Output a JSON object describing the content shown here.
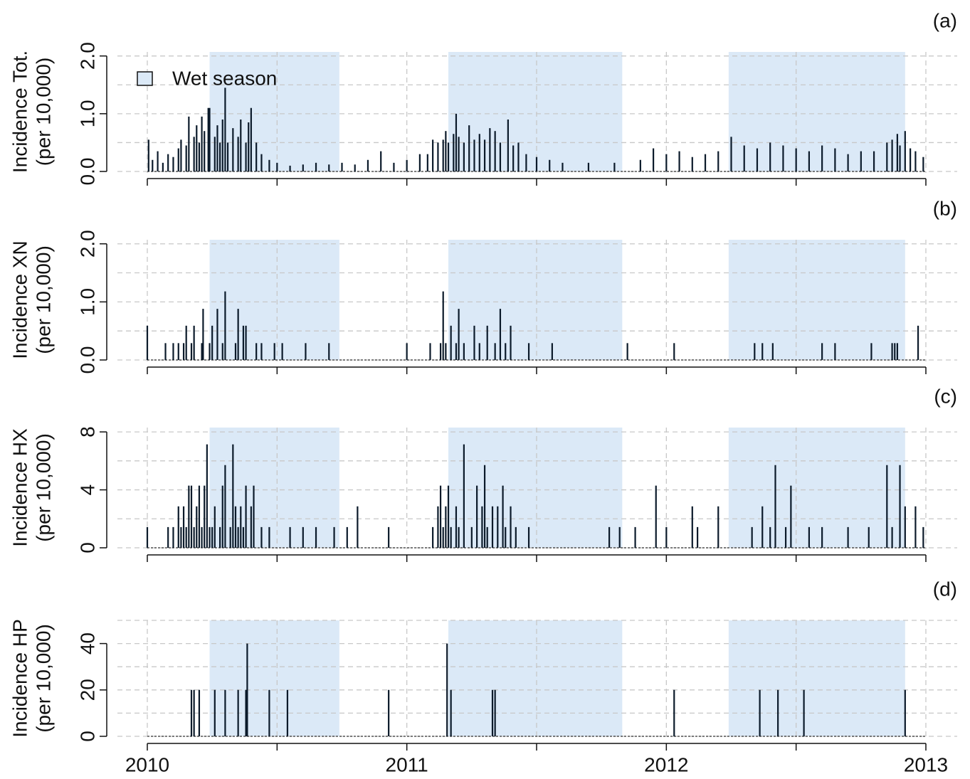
{
  "x_axis": {
    "xlim": [
      2010,
      2013
    ],
    "xticks": [
      2010,
      2011,
      2012,
      2013
    ],
    "minor_xticks": [
      2010.5,
      2011.5,
      2012.5
    ]
  },
  "wet_season": {
    "label": "Wet season",
    "color": "#dbe9f7",
    "periods": [
      [
        2010.24,
        2010.74
      ],
      [
        2011.16,
        2011.83
      ],
      [
        2012.24,
        2012.92
      ]
    ]
  },
  "chart_data": [
    {
      "type": "spike",
      "panel_label": "(a)",
      "y_label": [
        "Incidence Tot.",
        "(per 10,000)"
      ],
      "color": "#0b1a2a",
      "legend": "top-left",
      "ylim": [
        0,
        2.07
      ],
      "yticks": [
        {
          "value": 0,
          "label": "0.0"
        },
        {
          "value": 1,
          "label": "1.0"
        },
        {
          "value": 2,
          "label": "2.0"
        }
      ],
      "yminor": [
        0.5,
        1.5
      ],
      "grid": true,
      "x": [
        2010.005,
        2010.02,
        2010.04,
        2010.06,
        2010.08,
        2010.1,
        2010.12,
        2010.13,
        2010.15,
        2010.16,
        2010.18,
        2010.19,
        2010.2,
        2010.21,
        2010.22,
        2010.235,
        2010.24,
        2010.26,
        2010.27,
        2010.28,
        2010.29,
        2010.3,
        2010.31,
        2010.33,
        2010.35,
        2010.36,
        2010.38,
        2010.39,
        2010.4,
        2010.42,
        2010.44,
        2010.47,
        2010.5,
        2010.55,
        2010.6,
        2010.65,
        2010.7,
        2010.75,
        2010.8,
        2010.85,
        2010.9,
        2010.95,
        2011.0,
        2011.05,
        2011.08,
        2011.1,
        2011.12,
        2011.14,
        2011.15,
        2011.16,
        2011.18,
        2011.19,
        2011.2,
        2011.22,
        2011.24,
        2011.26,
        2011.28,
        2011.3,
        2011.32,
        2011.34,
        2011.36,
        2011.39,
        2011.41,
        2011.43,
        2011.46,
        2011.5,
        2011.55,
        2011.6,
        2011.7,
        2011.8,
        2011.9,
        2011.95,
        2012.0,
        2012.05,
        2012.1,
        2012.15,
        2012.2,
        2012.25,
        2012.3,
        2012.35,
        2012.4,
        2012.45,
        2012.5,
        2012.55,
        2012.6,
        2012.65,
        2012.7,
        2012.75,
        2012.8,
        2012.85,
        2012.87,
        2012.89,
        2012.9,
        2012.92,
        2012.94,
        2012.96,
        2012.99
      ],
      "values": [
        0.55,
        0.2,
        0.35,
        0.15,
        0.3,
        0.25,
        0.4,
        0.55,
        0.45,
        0.95,
        0.6,
        0.8,
        0.5,
        0.95,
        0.7,
        1.1,
        1.1,
        0.6,
        0.8,
        0.5,
        0.9,
        1.45,
        0.5,
        0.75,
        0.6,
        0.9,
        0.5,
        0.85,
        1.1,
        0.5,
        0.3,
        0.2,
        0.15,
        0.1,
        0.12,
        0.15,
        0.12,
        0.15,
        0.12,
        0.2,
        0.35,
        0.15,
        0.2,
        0.3,
        0.3,
        0.55,
        0.5,
        0.55,
        0.7,
        0.5,
        0.65,
        1.0,
        0.6,
        0.5,
        0.8,
        0.55,
        0.65,
        0.55,
        0.75,
        0.7,
        0.5,
        0.9,
        0.45,
        0.5,
        0.3,
        0.25,
        0.2,
        0.15,
        0.15,
        0.15,
        0.2,
        0.4,
        0.3,
        0.35,
        0.25,
        0.3,
        0.35,
        0.6,
        0.45,
        0.4,
        0.5,
        0.45,
        0.4,
        0.35,
        0.45,
        0.4,
        0.3,
        0.35,
        0.35,
        0.5,
        0.55,
        0.65,
        0.45,
        0.7,
        0.4,
        0.35,
        0.25
      ]
    },
    {
      "type": "spike",
      "panel_label": "(b)",
      "y_label": [
        "Incidence XN",
        "(per 10,000)"
      ],
      "color": "#0b1a2a",
      "ylim": [
        0,
        2.07
      ],
      "yticks": [
        {
          "value": 0,
          "label": "0.0"
        },
        {
          "value": 1,
          "label": "1.0"
        },
        {
          "value": 2,
          "label": "2.0"
        }
      ],
      "yminor": [
        0.5,
        1.5
      ],
      "grid": true,
      "x": [
        2010.0,
        2010.07,
        2010.1,
        2010.12,
        2010.14,
        2010.15,
        2010.17,
        2010.18,
        2010.21,
        2010.215,
        2010.24,
        2010.25,
        2010.27,
        2010.29,
        2010.3,
        2010.34,
        2010.35,
        2010.37,
        2010.38,
        2010.42,
        2010.44,
        2010.49,
        2010.52,
        2010.61,
        2010.7,
        2011.0,
        2011.09,
        2011.13,
        2011.14,
        2011.15,
        2011.17,
        2011.19,
        2011.2,
        2011.22,
        2011.26,
        2011.28,
        2011.31,
        2011.34,
        2011.36,
        2011.38,
        2011.4,
        2011.47,
        2011.56,
        2011.85,
        2012.03,
        2012.34,
        2012.37,
        2012.41,
        2012.6,
        2012.65,
        2012.79,
        2012.87,
        2012.88,
        2012.89,
        2012.97
      ],
      "values": [
        0.59,
        0.29,
        0.29,
        0.29,
        0.29,
        0.59,
        0.29,
        0.59,
        0.29,
        0.88,
        0.29,
        0.59,
        0.88,
        0.29,
        1.18,
        0.29,
        0.88,
        0.59,
        0.59,
        0.29,
        0.29,
        0.29,
        0.29,
        0.29,
        0.29,
        0.29,
        0.29,
        0.29,
        1.18,
        0.29,
        0.59,
        0.29,
        0.88,
        0.29,
        0.59,
        0.29,
        0.59,
        0.29,
        0.88,
        0.29,
        0.59,
        0.29,
        0.29,
        0.29,
        0.29,
        0.29,
        0.29,
        0.29,
        0.29,
        0.29,
        0.29,
        0.29,
        0.29,
        0.29,
        0.59
      ]
    },
    {
      "type": "spike",
      "panel_label": "(c)",
      "y_label": [
        "Incidence HX",
        "(per 10,000)"
      ],
      "color": "#0b1a2a",
      "ylim": [
        0,
        8.3
      ],
      "yticks": [
        0,
        4,
        8
      ],
      "yminor": [
        2,
        6
      ],
      "grid": true,
      "x": [
        2010.0,
        2010.08,
        2010.1,
        2010.12,
        2010.13,
        2010.14,
        2010.15,
        2010.16,
        2010.17,
        2010.18,
        2010.19,
        2010.2,
        2010.21,
        2010.22,
        2010.23,
        2010.24,
        2010.25,
        2010.26,
        2010.28,
        2010.29,
        2010.3,
        2010.32,
        2010.33,
        2010.34,
        2010.35,
        2010.36,
        2010.37,
        2010.38,
        2010.4,
        2010.41,
        2010.44,
        2010.47,
        2010.55,
        2010.6,
        2010.65,
        2010.72,
        2010.77,
        2010.81,
        2010.93,
        2011.1,
        2011.12,
        2011.13,
        2011.14,
        2011.15,
        2011.16,
        2011.17,
        2011.19,
        2011.2,
        2011.22,
        2011.25,
        2011.27,
        2011.29,
        2011.3,
        2011.31,
        2011.33,
        2011.35,
        2011.37,
        2011.38,
        2011.4,
        2011.42,
        2011.47,
        2011.78,
        2011.82,
        2011.88,
        2011.96,
        2012.0,
        2012.1,
        2012.12,
        2012.2,
        2012.33,
        2012.37,
        2012.4,
        2012.42,
        2012.46,
        2012.48,
        2012.55,
        2012.6,
        2012.7,
        2012.78,
        2012.85,
        2012.87,
        2012.9,
        2012.92,
        2012.96,
        2012.99
      ],
      "values": [
        1.43,
        1.43,
        1.43,
        2.86,
        1.43,
        2.86,
        1.43,
        4.29,
        4.29,
        1.43,
        2.86,
        4.29,
        1.43,
        4.29,
        7.14,
        1.43,
        1.43,
        2.86,
        1.43,
        4.29,
        5.71,
        1.43,
        7.14,
        2.86,
        1.43,
        2.86,
        1.43,
        4.29,
        2.86,
        4.29,
        1.43,
        1.43,
        1.43,
        1.43,
        1.43,
        1.43,
        1.43,
        2.86,
        1.43,
        1.43,
        2.86,
        4.29,
        1.43,
        2.86,
        4.29,
        1.43,
        2.86,
        1.43,
        7.14,
        1.43,
        4.29,
        2.86,
        5.71,
        1.43,
        2.86,
        2.86,
        4.29,
        1.43,
        2.86,
        1.43,
        1.43,
        1.43,
        1.43,
        1.43,
        4.29,
        1.43,
        2.86,
        1.43,
        2.86,
        1.43,
        2.86,
        1.43,
        5.71,
        1.43,
        4.29,
        1.43,
        1.43,
        1.43,
        1.43,
        5.71,
        1.43,
        5.71,
        2.86,
        2.86,
        1.43
      ]
    },
    {
      "type": "spike",
      "panel_label": "(d)",
      "y_label": [
        "Incidence HP",
        "(per 10,000)"
      ],
      "color": "#0b1a2a",
      "ylim": [
        0,
        50
      ],
      "yticks": [
        0,
        20,
        40
      ],
      "yminor": [
        10,
        30,
        50
      ],
      "grid": true,
      "x": [
        2010.17,
        2010.18,
        2010.2,
        2010.26,
        2010.3,
        2010.35,
        2010.38,
        2010.385,
        2010.47,
        2010.54,
        2010.93,
        2011.155,
        2011.17,
        2011.33,
        2011.34,
        2012.03,
        2012.36,
        2012.43,
        2012.53,
        2012.92
      ],
      "values": [
        20,
        20,
        20,
        20,
        20,
        20,
        20,
        40,
        20,
        20,
        20,
        40,
        20,
        20,
        20,
        20,
        20,
        20,
        20,
        20
      ]
    }
  ]
}
